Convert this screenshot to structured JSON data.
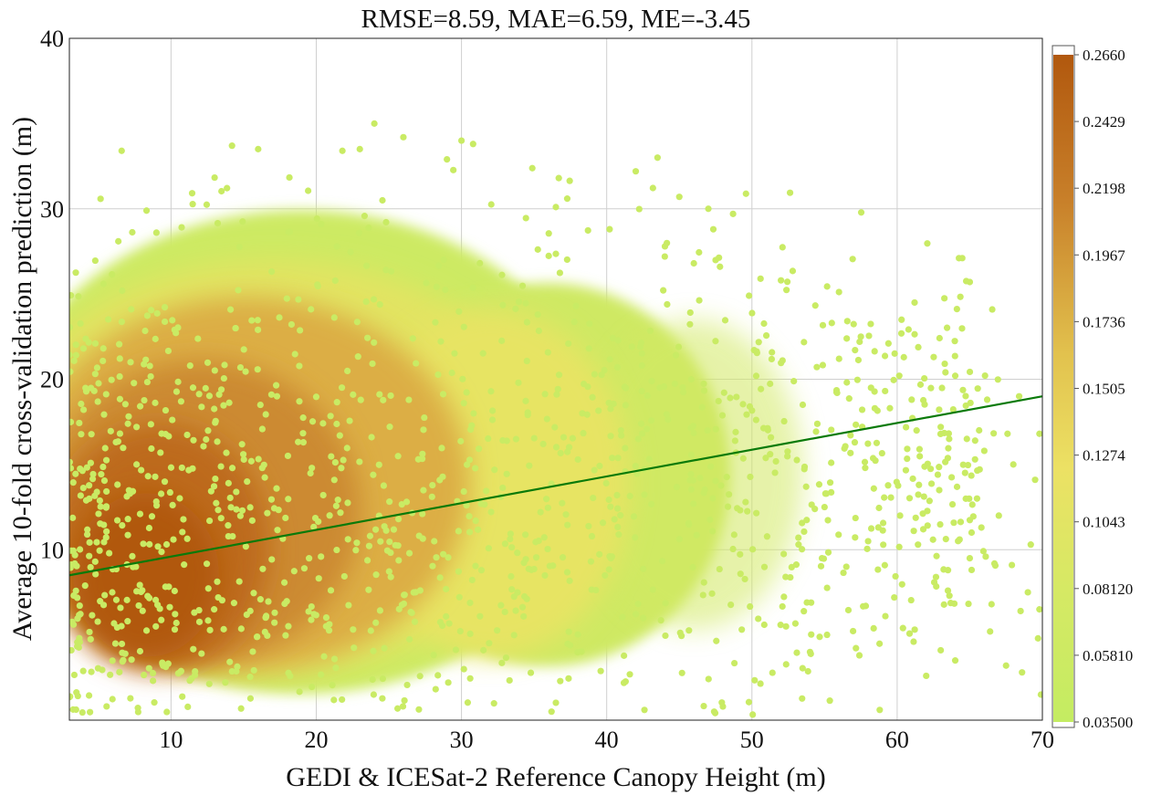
{
  "chart_data": {
    "type": "scatter",
    "title": "RMSE=8.59, MAE=6.59, ME=-3.45",
    "xlabel": "GEDI & ICESat-2 Reference Canopy Height (m)",
    "ylabel": "Average 10-fold cross-validation prediction (m)",
    "xlim": [
      3,
      70
    ],
    "ylim": [
      0,
      40
    ],
    "x_ticks": [
      10,
      20,
      30,
      40,
      50,
      60,
      70
    ],
    "y_ticks": [
      10,
      20,
      30,
      40
    ],
    "x_tick_labels": [
      "10",
      "20",
      "30",
      "40",
      "50",
      "60",
      "70"
    ],
    "y_tick_labels": [
      "10",
      "20",
      "30",
      "40"
    ],
    "grid": true,
    "density_core": {
      "center_x": 8,
      "center_y": 7.5
    },
    "fit_line": {
      "x": [
        3,
        70
      ],
      "y": [
        8.5,
        19.0
      ],
      "color": "#0a7a0a"
    },
    "colorbar": {
      "range": [
        0.035,
        0.266
      ],
      "ticks": [
        "0.2660",
        "0.2429",
        "0.2198",
        "0.1967",
        "0.1736",
        "0.1505",
        "0.1274",
        "0.1043",
        "0.08120",
        "0.05810",
        "0.03500"
      ],
      "colors": [
        "#b1580e",
        "#d4962e",
        "#ecde5e",
        "#c9eb64"
      ]
    },
    "outliers": [
      [
        6.6,
        33.4
      ],
      [
        14.2,
        33.7
      ],
      [
        16.0,
        33.5
      ],
      [
        21.8,
        33.4
      ],
      [
        23.0,
        33.5
      ],
      [
        24.0,
        35.0
      ],
      [
        26.0,
        34.2
      ],
      [
        30.0,
        34.0
      ],
      [
        30.8,
        33.8
      ],
      [
        29.0,
        32.9
      ],
      [
        36.7,
        31.8
      ],
      [
        42.0,
        32.2
      ],
      [
        43.5,
        33.0
      ],
      [
        45.0,
        30.7
      ],
      [
        47.0,
        30.0
      ],
      [
        48.7,
        29.7
      ],
      [
        36.5,
        30.1
      ],
      [
        40.2,
        28.8
      ],
      [
        44.0,
        27.2
      ],
      [
        46.0,
        26.8
      ],
      [
        47.8,
        26.6
      ],
      [
        52.0,
        25.8
      ],
      [
        49.8,
        24.9
      ],
      [
        61.2,
        24.5
      ],
      [
        55.5,
        23.3
      ],
      [
        57.5,
        22.5
      ],
      [
        59.4,
        22.1
      ],
      [
        56.0,
        21.2
      ],
      [
        64.0,
        20.2
      ],
      [
        66.2,
        18.8
      ],
      [
        68.4,
        19.0
      ],
      [
        61.0,
        18.8
      ],
      [
        59.5,
        18.3
      ],
      [
        63.0,
        17.2
      ],
      [
        67.6,
        16.8
      ],
      [
        69.8,
        16.8
      ],
      [
        66.0,
        15.8
      ],
      [
        68.0,
        15.0
      ],
      [
        62.8,
        14.4
      ],
      [
        69.5,
        14.1
      ],
      [
        67.0,
        12.0
      ],
      [
        65.5,
        13.0
      ],
      [
        61.8,
        11.2
      ],
      [
        64.3,
        10.6
      ],
      [
        69.2,
        10.3
      ],
      [
        65.0,
        9.5
      ],
      [
        67.9,
        9.1
      ],
      [
        63.5,
        8.8
      ],
      [
        69.0,
        7.5
      ],
      [
        68.5,
        6.4
      ],
      [
        69.8,
        6.5
      ],
      [
        66.4,
        5.2
      ],
      [
        60.4,
        5.4
      ],
      [
        63.0,
        4.1
      ],
      [
        64.0,
        3.5
      ],
      [
        67.5,
        3.2
      ],
      [
        68.6,
        2.8
      ],
      [
        69.7,
        4.8
      ],
      [
        62.0,
        2.6
      ],
      [
        58.8,
        0.6
      ],
      [
        57.4,
        3.8
      ],
      [
        54.0,
        4.0
      ],
      [
        59.8,
        7.2
      ],
      [
        56.5,
        9.0
      ],
      [
        55.0,
        12.5
      ],
      [
        57.8,
        14.8
      ],
      [
        53.5,
        18.5
      ],
      [
        58.2,
        19.5
      ],
      [
        66.5,
        6.8
      ],
      [
        69.9,
        1.5
      ],
      [
        47.4,
        0.5
      ],
      [
        48.0,
        0.8
      ],
      [
        42.6,
        0.6
      ],
      [
        36.2,
        0.5
      ],
      [
        61.5,
        13.8
      ],
      [
        64.8,
        16.5
      ],
      [
        60.2,
        12.0
      ],
      [
        63.6,
        7.3
      ],
      [
        58.0,
        10.5
      ],
      [
        65.8,
        11.3
      ]
    ]
  }
}
